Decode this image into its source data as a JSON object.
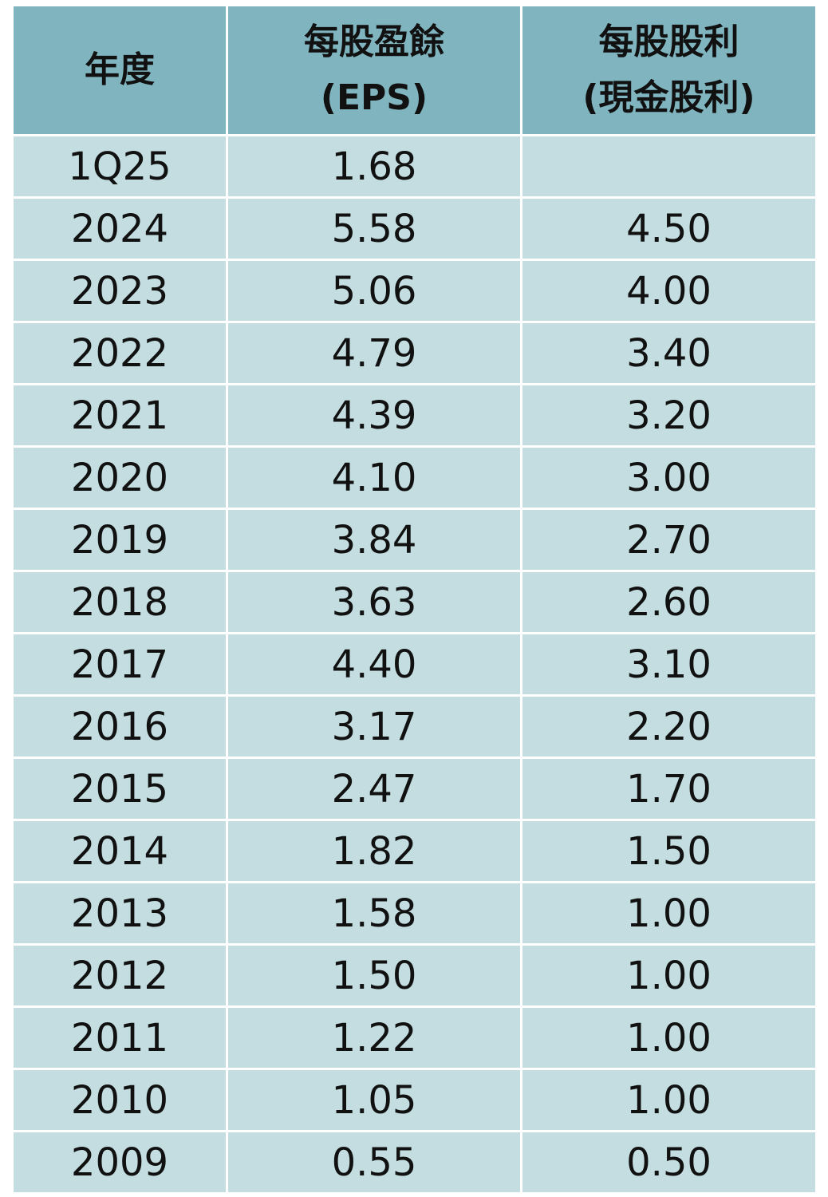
{
  "table": {
    "header": [
      [
        "年度"
      ],
      [
        "每股盈餘",
        "(EPS)"
      ],
      [
        "每股股利",
        "(現金股利)"
      ]
    ],
    "rows": [
      [
        "1Q25",
        "1.68"
      ],
      [
        "2024",
        "5.58",
        "4.50"
      ],
      [
        "2023",
        "5.06",
        "4.00"
      ],
      [
        "2022",
        "4.79",
        "3.40"
      ],
      [
        "2021",
        "4.39",
        "3.20"
      ],
      [
        "2020",
        "4.10",
        "3.00"
      ],
      [
        "2019",
        "3.84",
        "2.70"
      ],
      [
        "2018",
        "3.63",
        "2.60"
      ],
      [
        "2017",
        "4.40",
        "3.10"
      ],
      [
        "2016",
        "3.17",
        "2.20"
      ],
      [
        "2015",
        "2.47",
        "1.70"
      ],
      [
        "2014",
        "1.82",
        "1.50"
      ],
      [
        "2013",
        "1.58",
        "1.00"
      ],
      [
        "2012",
        "1.50",
        "1.00"
      ],
      [
        "2011",
        "1.22",
        "1.00"
      ],
      [
        "2010",
        "1.05",
        "1.00"
      ],
      [
        "2009",
        "0.55",
        "0.50"
      ]
    ]
  }
}
